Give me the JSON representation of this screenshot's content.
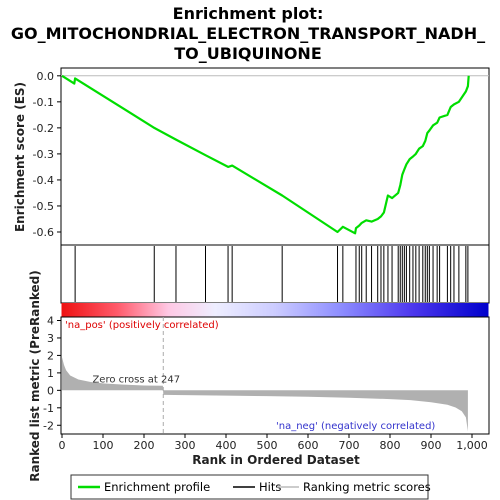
{
  "chart_data": {
    "type": "line",
    "title_lines": [
      "Enrichment plot:",
      "GO_MITOCHONDRIAL_ELECTRON_TRANSPORT_NADH_",
      "TO_UBIQUINONE"
    ],
    "xlabel": "Rank in Ordered Dataset",
    "ylabel_es": "Enrichment score (ES)",
    "ylabel_metric": "Ranked list metric (PreRanked)",
    "xlim": [
      0,
      1000
    ],
    "es_ylim": [
      -0.65,
      0.03
    ],
    "metric_ylim": [
      -2.5,
      4.2
    ],
    "x_ticks": [
      0,
      100,
      200,
      300,
      400,
      500,
      600,
      700,
      800,
      900,
      1000
    ],
    "x_tick_labels": [
      "0",
      "100",
      "200",
      "300",
      "400",
      "500",
      "600",
      "700",
      "800",
      "900",
      "1,000"
    ],
    "es_ticks": [
      0.0,
      -0.1,
      -0.2,
      -0.3,
      -0.4,
      -0.5,
      -0.6
    ],
    "es_tick_labels": [
      "0.0",
      "-0.1",
      "-0.2",
      "-0.3",
      "-0.4",
      "-0.5",
      "-0.6"
    ],
    "metric_ticks": [
      4,
      3,
      2,
      1,
      0,
      -1,
      -2
    ],
    "metric_tick_labels": [
      "4",
      "3",
      "2",
      "1",
      "0",
      "-1",
      "-2"
    ],
    "hits": [
      32,
      225,
      278,
      350,
      405,
      415,
      537,
      672,
      685,
      717,
      725,
      731,
      742,
      755,
      770,
      778,
      785,
      795,
      805,
      820,
      825,
      830,
      835,
      840,
      848,
      856,
      863,
      871,
      880,
      886,
      891,
      896,
      905,
      915,
      921,
      940,
      948,
      956,
      968,
      985,
      990
    ],
    "es_curve": {
      "x": [
        0,
        30,
        32,
        225,
        278,
        350,
        405,
        415,
        537,
        672,
        685,
        715,
        717,
        725,
        731,
        742,
        755,
        770,
        778,
        785,
        795,
        805,
        820,
        825,
        830,
        835,
        840,
        848,
        856,
        863,
        871,
        880,
        886,
        891,
        896,
        905,
        915,
        921,
        940,
        948,
        956,
        968,
        985,
        990,
        992
      ],
      "y": [
        0.0,
        -0.03,
        -0.01,
        -0.2,
        -0.245,
        -0.305,
        -0.35,
        -0.345,
        -0.46,
        -0.6,
        -0.58,
        -0.605,
        -0.585,
        -0.575,
        -0.565,
        -0.555,
        -0.56,
        -0.55,
        -0.54,
        -0.525,
        -0.46,
        -0.47,
        -0.45,
        -0.42,
        -0.38,
        -0.36,
        -0.34,
        -0.32,
        -0.31,
        -0.3,
        -0.28,
        -0.27,
        -0.25,
        -0.22,
        -0.21,
        -0.19,
        -0.18,
        -0.16,
        -0.15,
        -0.12,
        -0.11,
        -0.1,
        -0.06,
        -0.04,
        0.0
      ]
    },
    "metric_profile": {
      "x": [
        0,
        5,
        10,
        20,
        40,
        70,
        100,
        150,
        200,
        246,
        247,
        250,
        300,
        400,
        500,
        600,
        700,
        800,
        850,
        900,
        940,
        960,
        975,
        985,
        990
      ],
      "y": [
        1.9,
        1.45,
        1.15,
        0.85,
        0.62,
        0.48,
        0.4,
        0.33,
        0.28,
        0.26,
        -0.25,
        -0.26,
        -0.27,
        -0.3,
        -0.33,
        -0.37,
        -0.42,
        -0.5,
        -0.56,
        -0.68,
        -0.82,
        -0.98,
        -1.2,
        -1.55,
        -2.35
      ]
    },
    "zero_cross": 247,
    "zero_cross_label": "Zero cross at 247",
    "pos_label": "'na_pos' (positively correlated)",
    "neg_label": "'na_neg' (negatively correlated)",
    "legend": {
      "position": "bottom",
      "items": [
        {
          "label": "Enrichment profile",
          "color": "#00dd00",
          "kind": "line"
        },
        {
          "label": "Hits",
          "color": "#000000",
          "kind": "line"
        },
        {
          "label": "Ranking metric scores",
          "color": "#bbbbbb",
          "kind": "line"
        }
      ]
    },
    "colors": {
      "es_line": "#00dd00",
      "pos_label": "#dd0000",
      "neg_label": "#3333cc",
      "metric_fill": "#b0b0b0"
    }
  }
}
